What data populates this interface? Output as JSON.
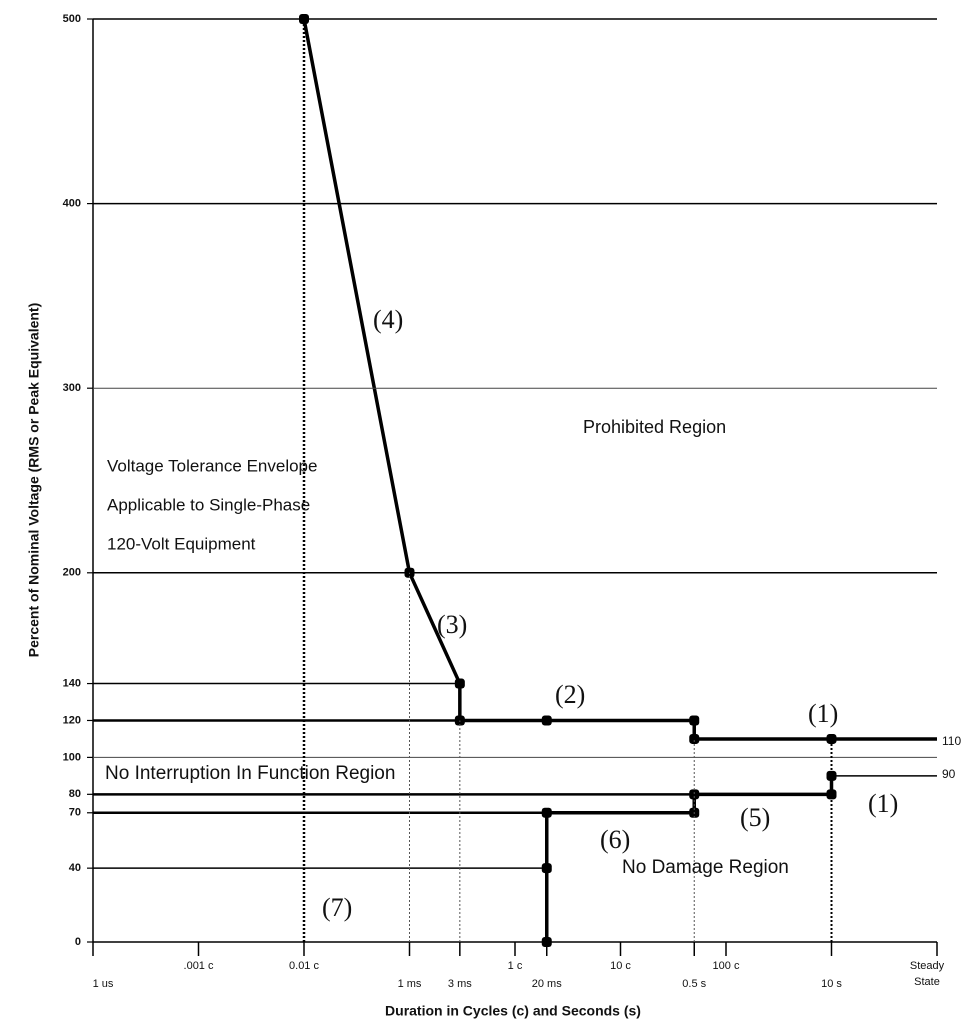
{
  "chart_data": {
    "type": "line",
    "x_log": true,
    "xlabel": "Duration in Cycles (c) and Seconds (s)",
    "ylabel": "Percent of Nominal Voltage (RMS or Peak Equivalent)",
    "xlim": [
      1e-06,
      100
    ],
    "ylim": [
      0,
      500
    ],
    "xticks": [
      {
        "value": 1e-06,
        "label": "1 us"
      },
      {
        "value": 1e-05,
        "label": ".001 c"
      },
      {
        "value": 0.0001,
        "label": "0.01 c"
      },
      {
        "value": 0.001,
        "label": "1 ms"
      },
      {
        "value": 0.003,
        "label": "3 ms"
      },
      {
        "value": 0.01,
        "label": "1 c"
      },
      {
        "value": 0.02,
        "label": "20 ms"
      },
      {
        "value": 0.1,
        "label": "10 c"
      },
      {
        "value": 0.5,
        "label": "0.5 s"
      },
      {
        "value": 1,
        "label": "100 c"
      },
      {
        "value": 10,
        "label": "10 s"
      },
      {
        "value": 100,
        "label": "Steady State"
      }
    ],
    "yticks": [
      0,
      40,
      70,
      80,
      100,
      120,
      140,
      200,
      300,
      400,
      500
    ],
    "series": [
      {
        "x": [
          0.0001,
          0.001,
          0.003,
          0.003,
          0.02,
          0.5,
          0.5,
          10,
          100
        ],
        "values": [
          500,
          200,
          140,
          120,
          120,
          120,
          110,
          110,
          110
        ],
        "color": "#000000",
        "width": 3.5,
        "markers": true
      },
      {
        "x": [
          0.02,
          0.02,
          0.02,
          0.5,
          0.5,
          10,
          10
        ],
        "values": [
          0,
          40,
          70,
          70,
          80,
          80,
          90
        ],
        "color": "#000000",
        "width": 3.5,
        "markers": true
      },
      {
        "x": [
          10,
          100
        ],
        "values": [
          90,
          90
        ],
        "color": "#000000",
        "width": 1.5
      },
      {
        "x": [
          1e-06,
          0.003
        ],
        "values": [
          140,
          140
        ],
        "color": "#000000",
        "width": 1.5
      },
      {
        "x": [
          1e-06,
          0.003
        ],
        "values": [
          120,
          120
        ],
        "color": "#000000",
        "width": 2.5
      },
      {
        "x": [
          1e-06,
          0.5
        ],
        "values": [
          80,
          80
        ],
        "color": "#000000",
        "width": 2.5
      },
      {
        "x": [
          1e-06,
          0.02
        ],
        "values": [
          70,
          70
        ],
        "color": "#000000",
        "width": 2.5
      },
      {
        "x": [
          1e-06,
          0.02
        ],
        "values": [
          40,
          40
        ],
        "color": "#000000",
        "width": 1.5
      },
      {
        "x": [
          1e-06,
          100
        ],
        "values": [
          100,
          100
        ],
        "color": "#444444",
        "width": 1
      },
      {
        "x": [
          1e-06,
          100
        ],
        "values": [
          200,
          200
        ],
        "color": "#000000",
        "width": 1.5
      },
      {
        "x": [
          1e-06,
          100
        ],
        "values": [
          300,
          300
        ],
        "color": "#444444",
        "width": 1
      },
      {
        "x": [
          1e-06,
          100
        ],
        "values": [
          400,
          400
        ],
        "color": "#000000",
        "width": 1.5
      },
      {
        "x": [
          1e-06,
          100
        ],
        "values": [
          500,
          500
        ],
        "color": "#000000",
        "width": 1.5
      },
      {
        "x": [
          0.0001,
          0.0001
        ],
        "values": [
          0,
          500
        ],
        "color": "#000000",
        "width": 2.5,
        "dash": true
      },
      {
        "x": [
          0.001,
          0.001
        ],
        "values": [
          0,
          200
        ],
        "color": "#555555",
        "width": 1,
        "dash": true
      },
      {
        "x": [
          0.003,
          0.003
        ],
        "values": [
          0,
          120
        ],
        "color": "#555555",
        "width": 1,
        "dash": true
      },
      {
        "x": [
          0.5,
          0.5
        ],
        "values": [
          0,
          110
        ],
        "color": "#555555",
        "width": 1,
        "dash": true
      },
      {
        "x": [
          10,
          10
        ],
        "values": [
          0,
          110
        ],
        "color": "#000000",
        "width": 2,
        "dash": true
      }
    ],
    "annotations": [
      "(4)",
      "Prohibited Region",
      "Voltage Tolerance Envelope",
      "Applicable to Single-Phase",
      "120-Volt Equipment",
      "(3)",
      "(2)",
      "(1)",
      "110",
      "No Interruption In Function Region",
      "90",
      "(1)",
      "(5)",
      "(6)",
      "No Damage Region",
      "(7)"
    ]
  }
}
